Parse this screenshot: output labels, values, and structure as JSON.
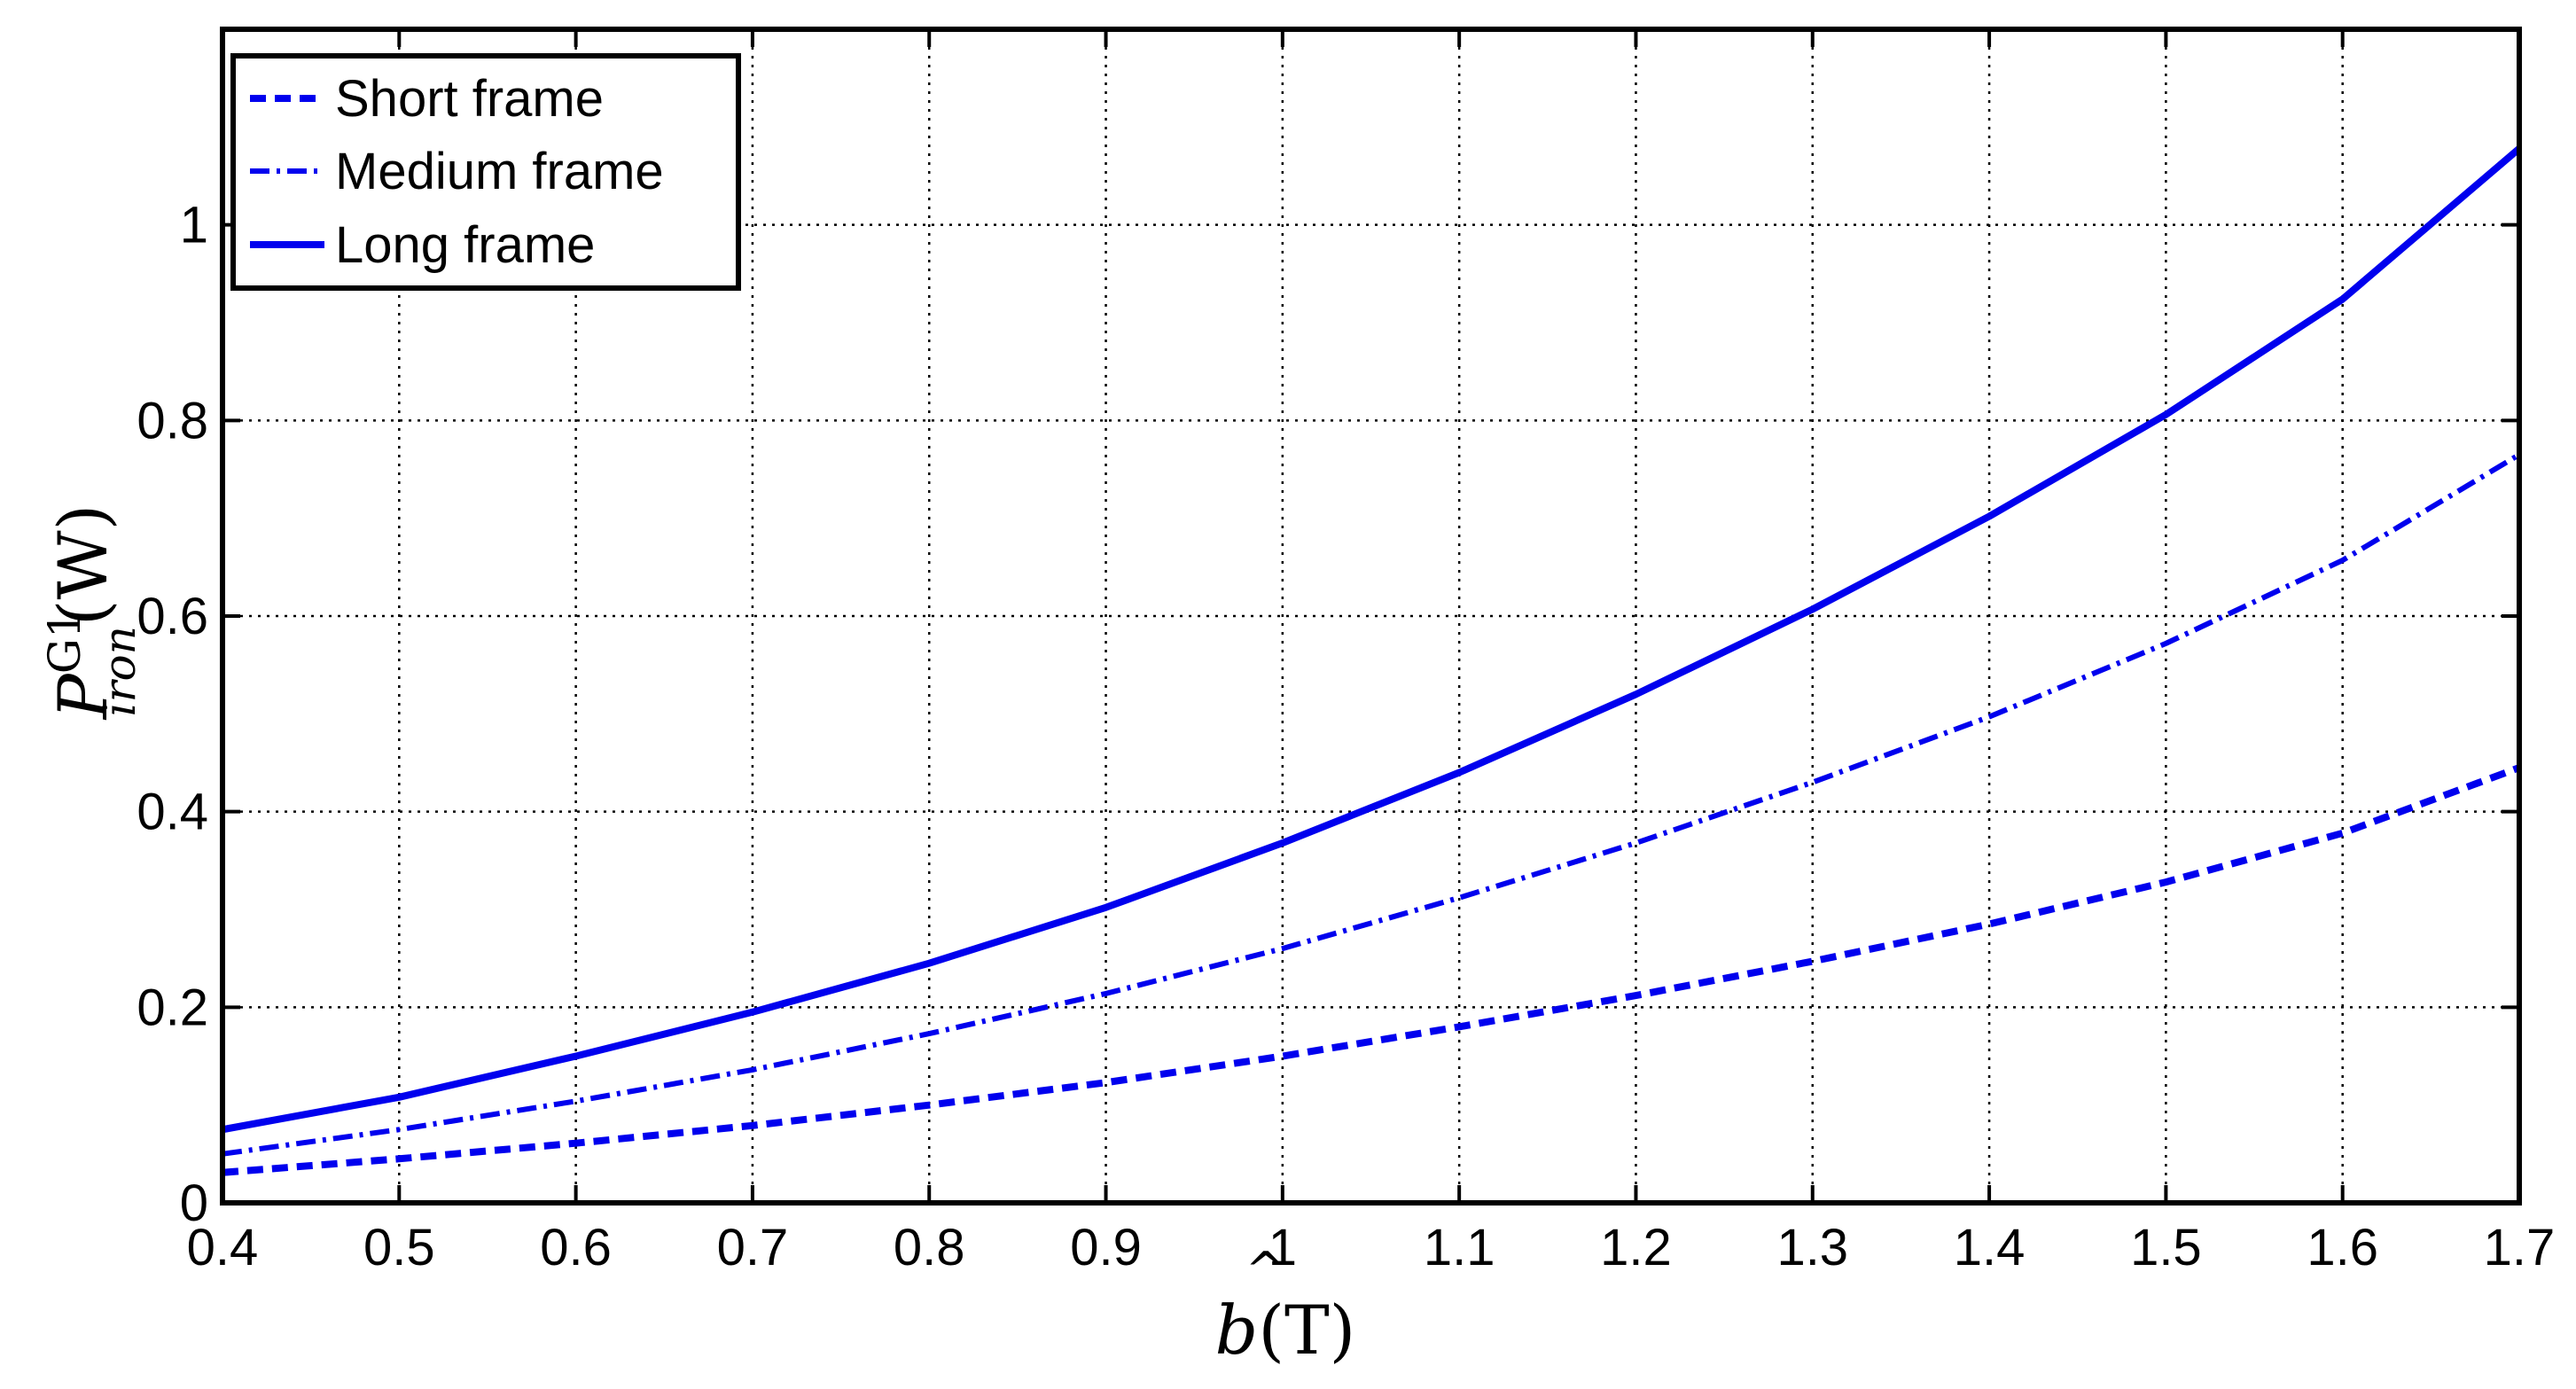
{
  "chart_data": {
    "type": "line",
    "title": "",
    "xlabel": "b(T)",
    "xlabel_parts": {
      "hat_symbol": "b",
      "unit": "(T)"
    },
    "ylabel": "P_iron^G1(W)",
    "ylabel_parts": {
      "symbol": "P",
      "superscript": "G1",
      "subscript": "iron",
      "unit": "(W)"
    },
    "xlim": [
      0.4,
      1.7
    ],
    "ylim": [
      0,
      1.2
    ],
    "xticks": [
      0.4,
      0.5,
      0.6,
      0.7,
      0.8,
      0.9,
      1,
      1.1,
      1.2,
      1.3,
      1.4,
      1.5,
      1.6,
      1.7
    ],
    "xtick_labels": [
      "0.4",
      "0.5",
      "0.6",
      "0.7",
      "0.8",
      "0.9",
      "1",
      "1.1",
      "1.2",
      "1.3",
      "1.4",
      "1.5",
      "1.6",
      "1.7"
    ],
    "yticks": [
      0,
      0.2,
      0.4,
      0.6,
      0.8,
      1
    ],
    "ytick_labels": [
      "0",
      "0.2",
      "0.4",
      "0.6",
      "0.8",
      "1"
    ],
    "grid": true,
    "legend_position": "top-left",
    "x": [
      0.4,
      0.5,
      0.6,
      0.7,
      0.8,
      0.9,
      1.0,
      1.1,
      1.2,
      1.3,
      1.4,
      1.5,
      1.6,
      1.7
    ],
    "series": [
      {
        "name": "Short frame",
        "style": "dashed",
        "color": "#0000ee",
        "values": [
          0.031,
          0.045,
          0.061,
          0.079,
          0.1,
          0.123,
          0.15,
          0.18,
          0.212,
          0.247,
          0.285,
          0.328,
          0.378,
          0.445
        ]
      },
      {
        "name": "Medium frame",
        "style": "dashdot",
        "color": "#0000ee",
        "values": [
          0.05,
          0.075,
          0.104,
          0.136,
          0.173,
          0.214,
          0.26,
          0.312,
          0.368,
          0.43,
          0.497,
          0.572,
          0.657,
          0.765
        ]
      },
      {
        "name": "Long frame",
        "style": "solid",
        "color": "#0000ee",
        "values": [
          0.075,
          0.108,
          0.15,
          0.195,
          0.245,
          0.302,
          0.368,
          0.44,
          0.52,
          0.607,
          0.702,
          0.806,
          0.924,
          1.078
        ]
      }
    ]
  }
}
